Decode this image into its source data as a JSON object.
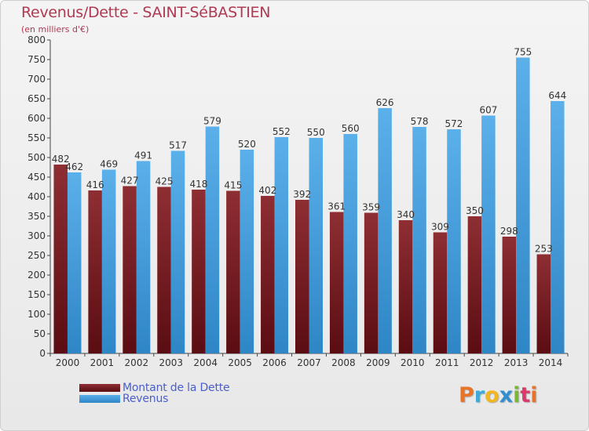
{
  "header": {
    "title": "Revenus/Dette - SAINT-SéBASTIEN",
    "subtitle": "(en milliers d'€)"
  },
  "legend": {
    "debt_label": "Montant de la Dette",
    "revenue_label": "Revenus"
  },
  "logo": {
    "letters": [
      "P",
      "r",
      "o",
      "x",
      "i",
      "t",
      "i"
    ],
    "colors": [
      "#e8742a",
      "#3fa9d8",
      "#f1b71c",
      "#2f8fd0",
      "#7ab833",
      "#d93a6a",
      "#e8742a"
    ]
  },
  "colors": {
    "debt": "#7a1f24",
    "revenue": "#4aa3e0",
    "title": "#b03a52"
  },
  "chart_data": {
    "type": "bar",
    "title": "Revenus/Dette - SAINT-SéBASTIEN",
    "ylabel": "(en milliers d'€)",
    "xlabel": "",
    "ylim": [
      0,
      800
    ],
    "ytick_step": 50,
    "grid": false,
    "legend_position": "bottom-left",
    "categories": [
      "2000",
      "2001",
      "2002",
      "2003",
      "2004",
      "2005",
      "2006",
      "2007",
      "2008",
      "2009",
      "2010",
      "2011",
      "2012",
      "2013",
      "2014"
    ],
    "series": [
      {
        "name": "Montant de la Dette",
        "values": [
          482,
          416,
          427,
          425,
          418,
          415,
          402,
          392,
          361,
          359,
          340,
          309,
          350,
          298,
          253
        ]
      },
      {
        "name": "Revenus",
        "values": [
          462,
          469,
          491,
          517,
          579,
          520,
          552,
          550,
          560,
          626,
          578,
          572,
          607,
          755,
          644
        ]
      }
    ]
  }
}
